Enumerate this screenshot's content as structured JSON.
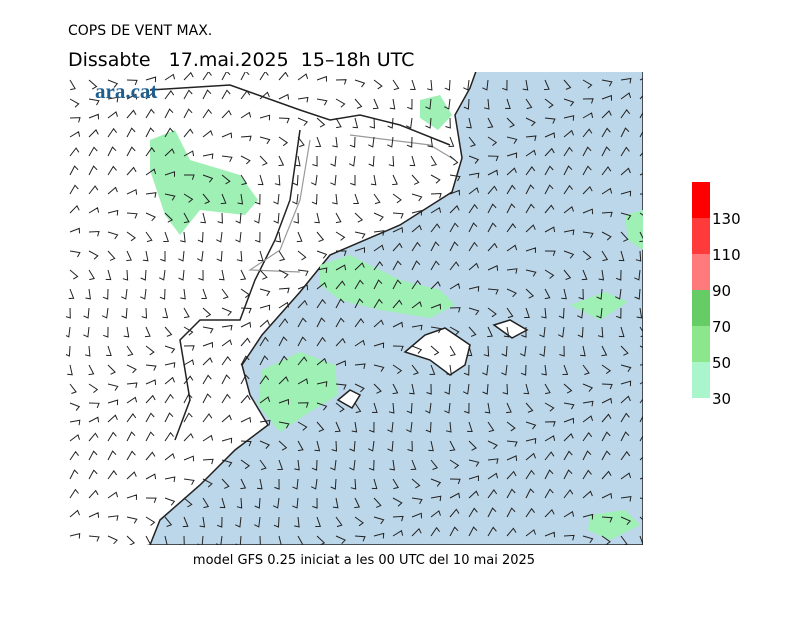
{
  "header": {
    "title": "COPS DE VENT MAX.",
    "subtitle": "Dissabte   17.mai.2025  15–18h UTC",
    "logo": "ara.cat"
  },
  "footer": "model GFS 0.25 iniciat a les 00 UTC del 10 mai 2025",
  "legend": {
    "levels": [
      30,
      50,
      70,
      90,
      110,
      130
    ],
    "colors": [
      "#aaf5cc",
      "#8ce68c",
      "#66cc66",
      "#ff7a7a",
      "#ff3a3a",
      "#ff0000"
    ]
  }
}
